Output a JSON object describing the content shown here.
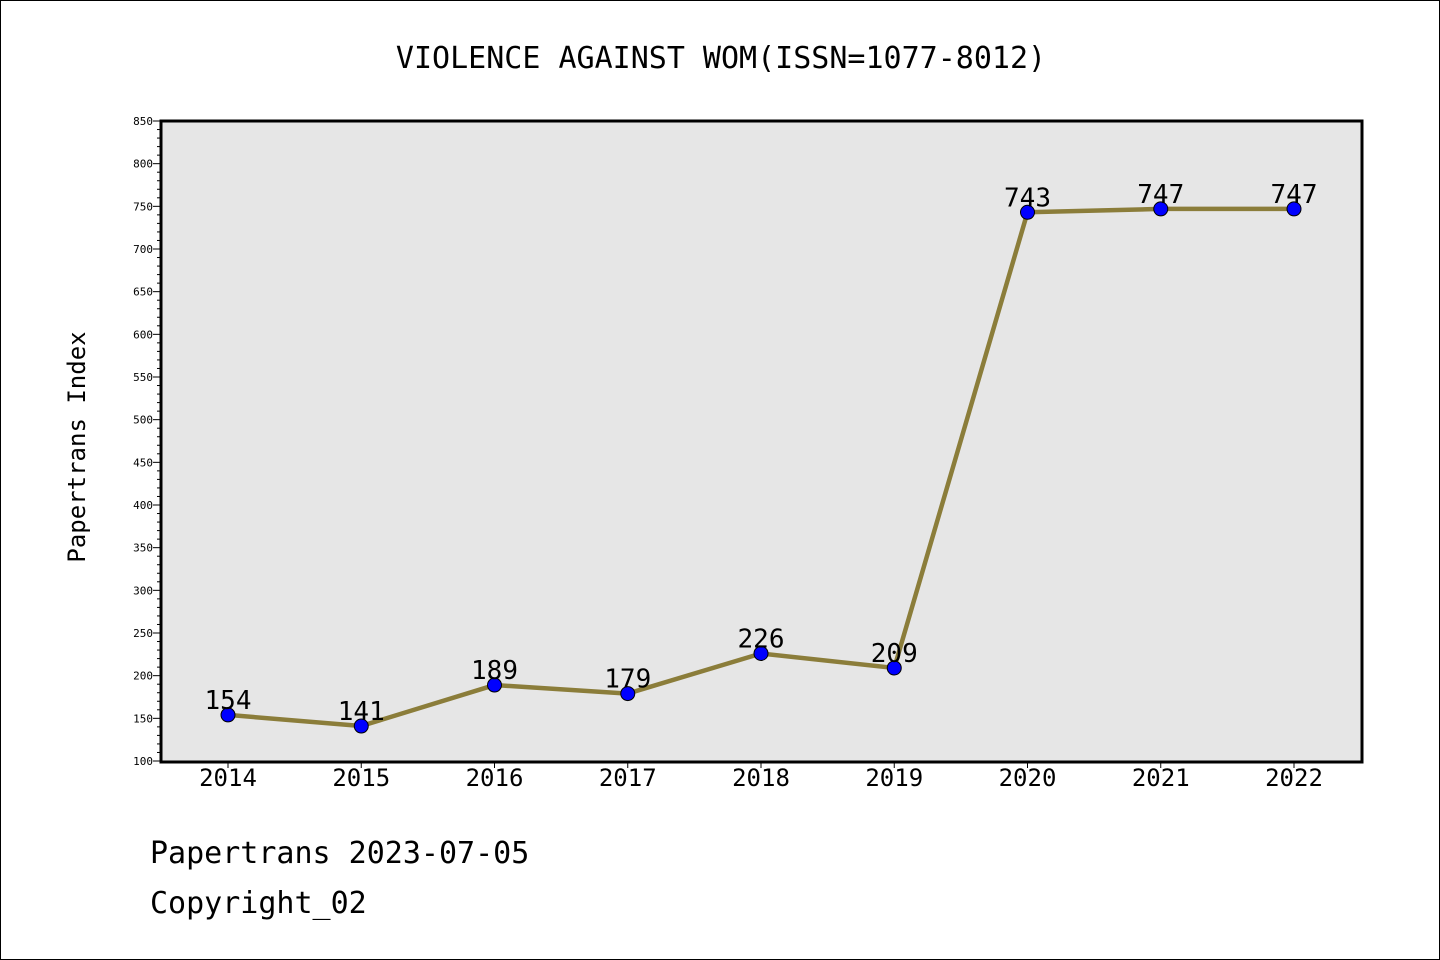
{
  "chart_data": {
    "type": "line",
    "title": "VIOLENCE AGAINST WOM(ISSN=1077-8012)",
    "xlabel": "",
    "ylabel": "Papertrans Index",
    "categories": [
      "2014",
      "2015",
      "2016",
      "2017",
      "2018",
      "2019",
      "2020",
      "2021",
      "2022"
    ],
    "values": [
      154,
      141,
      189,
      179,
      226,
      209,
      743,
      747,
      747
    ],
    "ylim": [
      100,
      850
    ],
    "yticks": [
      100,
      150,
      200,
      250,
      300,
      350,
      400,
      450,
      500,
      550,
      600,
      650,
      700,
      750,
      800,
      850
    ],
    "grid": false,
    "colors": {
      "line": "#8b7d3a",
      "marker": "#0000ff",
      "plot_background": "#e6e6e6"
    }
  },
  "footer": {
    "line1": "Papertrans 2023-07-05",
    "line2": "Copyright_02"
  }
}
